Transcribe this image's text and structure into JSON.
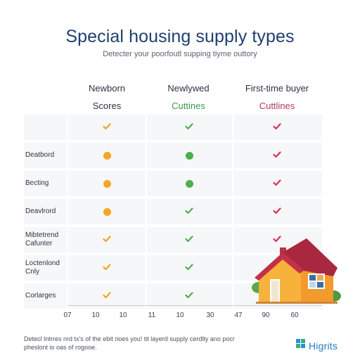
{
  "header": {
    "title": "Special housing supply types",
    "subtitle": "Detecter your poorfoutl supping tiyme outtory"
  },
  "columns": [
    {
      "heading": "Newborn",
      "sub": "Scores",
      "sub_color": "#2b3340"
    },
    {
      "heading": "Newlywed",
      "sub": "Cuttines",
      "sub_color": "#3d9a4c"
    },
    {
      "heading": "First-time buyer",
      "sub": "Cuttlines",
      "sub_color": "#b03a5a"
    }
  ],
  "colors": {
    "check_orange": "#f2a21e",
    "check_green": "#4caf50",
    "check_red": "#d9304f",
    "dot_orange": "#f5a623",
    "dot_green": "#4caf50"
  },
  "rows": [
    {
      "label": "",
      "cells": [
        "check-orange",
        "check-green",
        "check-red"
      ]
    },
    {
      "label": "Deatbord",
      "cells": [
        "dot-orange",
        "dot-green",
        "check-red"
      ]
    },
    {
      "label": "Becting",
      "cells": [
        "dot-orange",
        "dot-green",
        "check-red"
      ]
    },
    {
      "label": "Deavlrord",
      "cells": [
        "dot-orange",
        "check-green",
        "check-red"
      ]
    },
    {
      "label": "Mibtetrend Cafunter",
      "cells": [
        "check-orange",
        "check-green",
        "check-red"
      ]
    },
    {
      "label": "Loctenlond Cnly",
      "cells": [
        "check-orange",
        "check-green",
        "check-red"
      ]
    },
    {
      "label": "Corlarges",
      "cells": [
        "check-orange",
        "check-green",
        ""
      ]
    }
  ],
  "axis_ticks": [
    "07",
    "10",
    "10",
    "11",
    "10",
    "30",
    "47",
    "90",
    "60"
  ],
  "footnote": "Detecl Intrres nrd tx's of the ebit rioes you! tit layerd supply cerdlty ano pocr pheslont io oas of rogooe.",
  "logo": {
    "text": "Higrits",
    "icon": "higrits-logo-icon"
  },
  "illustration": {
    "icon": "house-icon"
  }
}
